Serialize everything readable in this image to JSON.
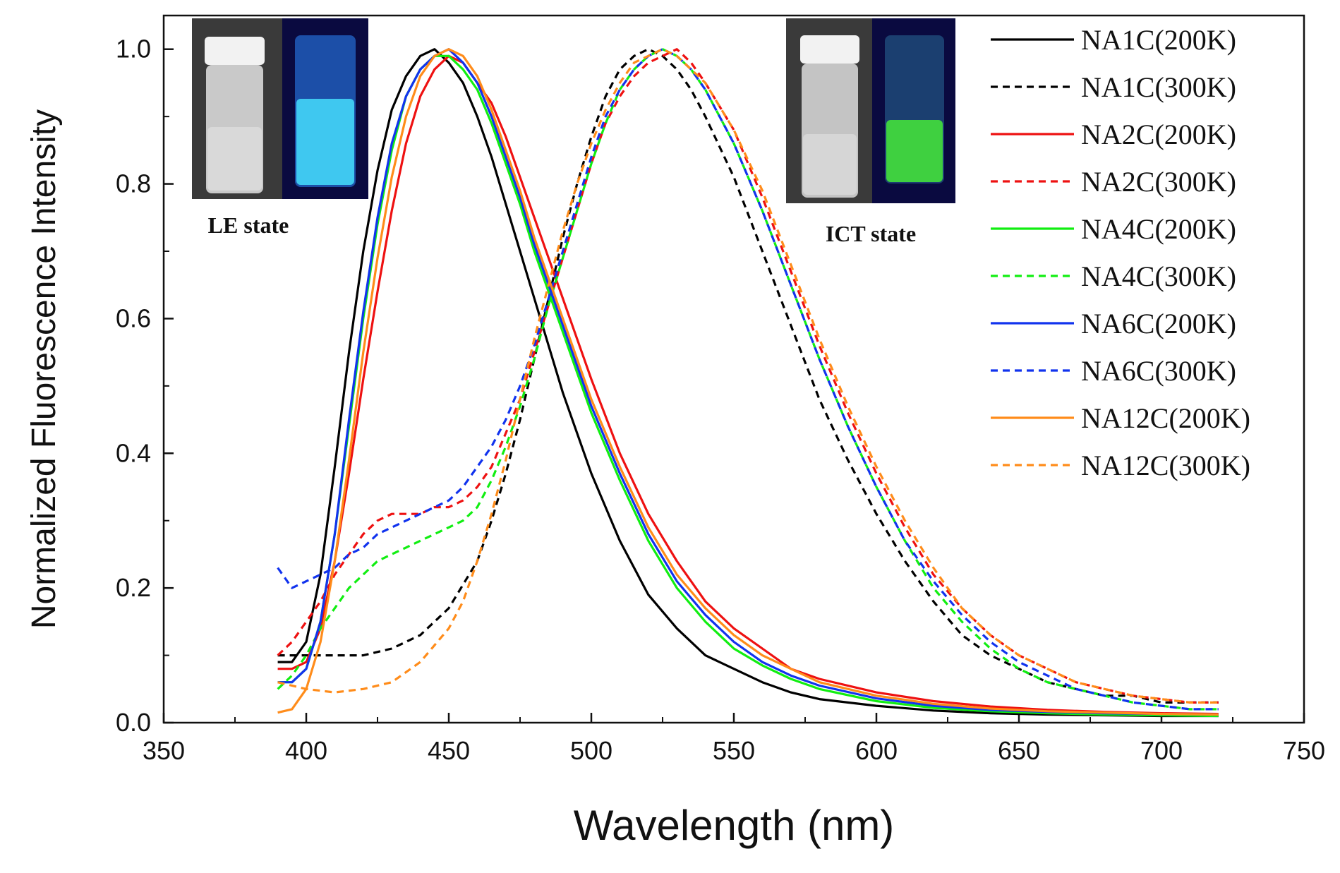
{
  "chart_data": {
    "type": "line",
    "title": "",
    "xlabel": "Wavelength (nm)",
    "ylabel": "Normalized Fluorescence Intensity",
    "xlim": [
      350,
      750
    ],
    "ylim": [
      0.0,
      1.05
    ],
    "x_ticks": [
      350,
      400,
      450,
      500,
      550,
      600,
      650,
      700,
      750
    ],
    "x_tick_labels": [
      "350",
      "400",
      "450",
      "500",
      "550",
      "600",
      "650",
      "700",
      "750"
    ],
    "y_ticks": [
      0.0,
      0.2,
      0.4,
      0.6,
      0.8,
      1.0
    ],
    "y_tick_labels": [
      "0.0",
      "0.2",
      "0.4",
      "0.6",
      "0.8",
      "1.0"
    ],
    "grid": false,
    "legend_position": "top-right",
    "series": [
      {
        "name": "NA1C(200K)",
        "color": "#000000",
        "dash": "solid",
        "x": [
          390,
          395,
          400,
          405,
          410,
          415,
          420,
          425,
          430,
          435,
          440,
          445,
          450,
          455,
          460,
          465,
          470,
          475,
          480,
          485,
          490,
          495,
          500,
          510,
          520,
          530,
          540,
          550,
          560,
          570,
          580,
          600,
          620,
          640,
          660,
          680,
          700,
          720
        ],
        "y": [
          0.09,
          0.09,
          0.12,
          0.22,
          0.38,
          0.55,
          0.7,
          0.82,
          0.91,
          0.96,
          0.99,
          1.0,
          0.98,
          0.95,
          0.9,
          0.84,
          0.77,
          0.7,
          0.63,
          0.56,
          0.49,
          0.43,
          0.37,
          0.27,
          0.19,
          0.14,
          0.1,
          0.08,
          0.06,
          0.045,
          0.035,
          0.025,
          0.018,
          0.014,
          0.012,
          0.011,
          0.01,
          0.01
        ]
      },
      {
        "name": "NA1C(300K)",
        "color": "#000000",
        "dash": "dashed",
        "x": [
          390,
          400,
          410,
          420,
          430,
          440,
          450,
          460,
          465,
          470,
          475,
          480,
          485,
          490,
          495,
          500,
          505,
          510,
          515,
          520,
          525,
          530,
          535,
          540,
          550,
          560,
          570,
          580,
          590,
          600,
          610,
          620,
          630,
          640,
          650,
          660,
          670,
          680,
          690,
          700,
          710,
          720
        ],
        "y": [
          0.1,
          0.1,
          0.1,
          0.1,
          0.11,
          0.13,
          0.17,
          0.24,
          0.3,
          0.37,
          0.45,
          0.54,
          0.63,
          0.72,
          0.8,
          0.87,
          0.93,
          0.97,
          0.99,
          1.0,
          0.99,
          0.97,
          0.94,
          0.9,
          0.81,
          0.7,
          0.59,
          0.48,
          0.39,
          0.31,
          0.24,
          0.18,
          0.13,
          0.1,
          0.08,
          0.06,
          0.05,
          0.04,
          0.04,
          0.03,
          0.03,
          0.03
        ]
      },
      {
        "name": "NA2C(200K)",
        "color": "#ee1111",
        "dash": "solid",
        "x": [
          390,
          395,
          400,
          405,
          410,
          415,
          420,
          425,
          430,
          435,
          440,
          445,
          450,
          455,
          460,
          465,
          470,
          475,
          480,
          485,
          490,
          495,
          500,
          510,
          520,
          530,
          540,
          550,
          560,
          570,
          580,
          600,
          620,
          640,
          660,
          680,
          700,
          720
        ],
        "y": [
          0.08,
          0.08,
          0.09,
          0.14,
          0.24,
          0.37,
          0.51,
          0.64,
          0.76,
          0.86,
          0.93,
          0.97,
          0.99,
          0.98,
          0.95,
          0.92,
          0.87,
          0.81,
          0.75,
          0.69,
          0.63,
          0.57,
          0.51,
          0.4,
          0.31,
          0.24,
          0.18,
          0.14,
          0.11,
          0.08,
          0.065,
          0.045,
          0.032,
          0.024,
          0.019,
          0.016,
          0.014,
          0.013
        ]
      },
      {
        "name": "NA2C(300K)",
        "color": "#ee1111",
        "dash": "dashed",
        "x": [
          390,
          395,
          400,
          405,
          410,
          415,
          420,
          425,
          430,
          435,
          440,
          445,
          450,
          455,
          460,
          465,
          470,
          475,
          480,
          485,
          490,
          495,
          500,
          505,
          510,
          515,
          520,
          525,
          530,
          535,
          540,
          550,
          560,
          570,
          580,
          590,
          600,
          610,
          620,
          630,
          640,
          650,
          660,
          670,
          680,
          690,
          700,
          710,
          720
        ],
        "y": [
          0.1,
          0.12,
          0.15,
          0.18,
          0.22,
          0.25,
          0.28,
          0.3,
          0.31,
          0.31,
          0.31,
          0.32,
          0.32,
          0.33,
          0.35,
          0.38,
          0.43,
          0.48,
          0.55,
          0.62,
          0.69,
          0.76,
          0.83,
          0.89,
          0.93,
          0.96,
          0.98,
          0.99,
          1.0,
          0.98,
          0.95,
          0.88,
          0.78,
          0.67,
          0.56,
          0.46,
          0.37,
          0.29,
          0.22,
          0.17,
          0.13,
          0.1,
          0.08,
          0.06,
          0.05,
          0.04,
          0.035,
          0.03,
          0.03
        ]
      },
      {
        "name": "NA4C(200K)",
        "color": "#11ee11",
        "dash": "solid",
        "x": [
          390,
          395,
          400,
          405,
          410,
          415,
          420,
          425,
          430,
          435,
          440,
          445,
          450,
          455,
          460,
          465,
          470,
          475,
          480,
          485,
          490,
          495,
          500,
          510,
          520,
          530,
          540,
          550,
          560,
          570,
          580,
          600,
          620,
          640,
          660,
          680,
          700,
          720
        ],
        "y": [
          0.06,
          0.06,
          0.08,
          0.15,
          0.28,
          0.44,
          0.6,
          0.74,
          0.85,
          0.93,
          0.97,
          0.99,
          0.99,
          0.97,
          0.94,
          0.89,
          0.83,
          0.77,
          0.7,
          0.64,
          0.58,
          0.52,
          0.46,
          0.36,
          0.27,
          0.2,
          0.15,
          0.11,
          0.085,
          0.065,
          0.05,
          0.032,
          0.022,
          0.017,
          0.014,
          0.012,
          0.011,
          0.01
        ]
      },
      {
        "name": "NA4C(300K)",
        "color": "#11ee11",
        "dash": "dashed",
        "x": [
          390,
          395,
          400,
          405,
          410,
          415,
          420,
          425,
          430,
          435,
          440,
          445,
          450,
          455,
          460,
          465,
          470,
          475,
          480,
          485,
          490,
          495,
          500,
          505,
          510,
          515,
          520,
          525,
          530,
          535,
          540,
          550,
          560,
          570,
          580,
          590,
          600,
          610,
          620,
          630,
          640,
          650,
          660,
          670,
          680,
          690,
          700,
          710,
          720
        ],
        "y": [
          0.05,
          0.07,
          0.1,
          0.14,
          0.17,
          0.2,
          0.22,
          0.24,
          0.25,
          0.26,
          0.27,
          0.28,
          0.29,
          0.3,
          0.32,
          0.36,
          0.41,
          0.47,
          0.54,
          0.62,
          0.69,
          0.76,
          0.83,
          0.89,
          0.94,
          0.97,
          0.99,
          1.0,
          0.99,
          0.97,
          0.94,
          0.86,
          0.76,
          0.65,
          0.54,
          0.44,
          0.35,
          0.27,
          0.2,
          0.15,
          0.11,
          0.08,
          0.06,
          0.05,
          0.04,
          0.03,
          0.025,
          0.02,
          0.02
        ]
      },
      {
        "name": "NA6C(200K)",
        "color": "#1133ee",
        "dash": "solid",
        "x": [
          390,
          395,
          400,
          405,
          410,
          415,
          420,
          425,
          430,
          435,
          440,
          445,
          450,
          455,
          460,
          465,
          470,
          475,
          480,
          485,
          490,
          495,
          500,
          510,
          520,
          530,
          540,
          550,
          560,
          570,
          580,
          600,
          620,
          640,
          660,
          680,
          700,
          720
        ],
        "y": [
          0.06,
          0.06,
          0.08,
          0.15,
          0.28,
          0.45,
          0.61,
          0.75,
          0.86,
          0.93,
          0.97,
          0.99,
          1.0,
          0.98,
          0.95,
          0.9,
          0.84,
          0.78,
          0.71,
          0.65,
          0.59,
          0.53,
          0.47,
          0.37,
          0.28,
          0.21,
          0.16,
          0.12,
          0.09,
          0.07,
          0.055,
          0.036,
          0.025,
          0.019,
          0.016,
          0.014,
          0.013,
          0.012
        ]
      },
      {
        "name": "NA6C(300K)",
        "color": "#1133ee",
        "dash": "dashed",
        "x": [
          390,
          395,
          400,
          405,
          410,
          415,
          420,
          425,
          430,
          435,
          440,
          445,
          450,
          455,
          460,
          465,
          470,
          475,
          480,
          485,
          490,
          495,
          500,
          505,
          510,
          515,
          520,
          525,
          530,
          535,
          540,
          550,
          560,
          570,
          580,
          590,
          600,
          610,
          620,
          630,
          640,
          650,
          660,
          670,
          680,
          690,
          700,
          710,
          720
        ],
        "y": [
          0.23,
          0.2,
          0.21,
          0.22,
          0.23,
          0.25,
          0.26,
          0.28,
          0.29,
          0.3,
          0.31,
          0.32,
          0.33,
          0.35,
          0.38,
          0.41,
          0.45,
          0.5,
          0.56,
          0.63,
          0.7,
          0.77,
          0.84,
          0.9,
          0.94,
          0.97,
          0.99,
          1.0,
          0.99,
          0.97,
          0.94,
          0.86,
          0.76,
          0.65,
          0.54,
          0.44,
          0.35,
          0.27,
          0.21,
          0.16,
          0.12,
          0.09,
          0.07,
          0.05,
          0.04,
          0.03,
          0.025,
          0.02,
          0.02
        ]
      },
      {
        "name": "NA12C(200K)",
        "color": "#ff8c1a",
        "dash": "solid",
        "x": [
          390,
          395,
          400,
          405,
          410,
          415,
          420,
          425,
          430,
          435,
          440,
          445,
          450,
          455,
          460,
          465,
          470,
          475,
          480,
          485,
          490,
          495,
          500,
          510,
          520,
          530,
          540,
          550,
          560,
          570,
          580,
          600,
          620,
          640,
          660,
          680,
          700,
          720
        ],
        "y": [
          0.015,
          0.02,
          0.05,
          0.12,
          0.24,
          0.39,
          0.55,
          0.69,
          0.81,
          0.9,
          0.96,
          0.99,
          1.0,
          0.99,
          0.96,
          0.91,
          0.85,
          0.79,
          0.72,
          0.66,
          0.6,
          0.54,
          0.48,
          0.38,
          0.29,
          0.22,
          0.17,
          0.13,
          0.1,
          0.08,
          0.06,
          0.04,
          0.028,
          0.021,
          0.017,
          0.015,
          0.013,
          0.012
        ]
      },
      {
        "name": "NA12C(300K)",
        "color": "#ff8c1a",
        "dash": "dashed",
        "x": [
          390,
          400,
          410,
          420,
          430,
          440,
          450,
          455,
          460,
          465,
          470,
          475,
          480,
          485,
          490,
          495,
          500,
          505,
          510,
          515,
          520,
          525,
          530,
          535,
          540,
          550,
          560,
          570,
          580,
          590,
          600,
          610,
          620,
          630,
          640,
          650,
          660,
          670,
          680,
          690,
          700,
          710,
          720
        ],
        "y": [
          0.06,
          0.05,
          0.045,
          0.05,
          0.06,
          0.09,
          0.14,
          0.18,
          0.24,
          0.31,
          0.39,
          0.48,
          0.57,
          0.65,
          0.73,
          0.8,
          0.86,
          0.91,
          0.95,
          0.98,
          0.99,
          1.0,
          0.99,
          0.97,
          0.95,
          0.88,
          0.79,
          0.68,
          0.57,
          0.47,
          0.38,
          0.3,
          0.23,
          0.17,
          0.13,
          0.1,
          0.08,
          0.06,
          0.05,
          0.04,
          0.035,
          0.03,
          0.03
        ]
      }
    ],
    "annotations": [
      {
        "text": "LE state",
        "near": "left inset photo"
      },
      {
        "text": "ICT state",
        "near": "right inset photo"
      }
    ]
  },
  "insets": {
    "le_label": "LE state",
    "ict_label": "ICT state"
  }
}
